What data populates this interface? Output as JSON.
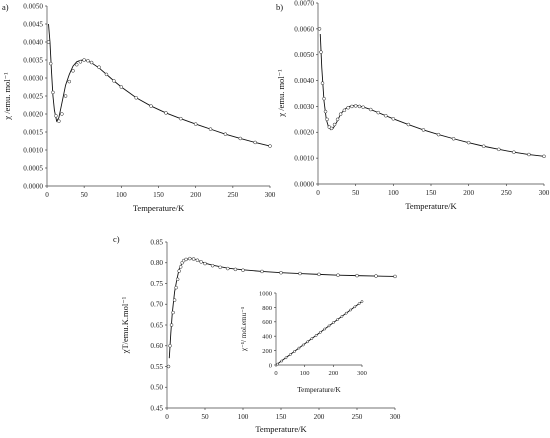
{
  "chart_data": [
    {
      "type": "scatter",
      "panel_label": "a)",
      "xlabel": "Temperature/K",
      "ylabel": "χ /emu. mol⁻¹",
      "xlim": [
        0,
        300
      ],
      "ylim": [
        0,
        0.005
      ],
      "xticks": [
        "0",
        "50",
        "100",
        "150",
        "200",
        "250",
        "300"
      ],
      "yticks": [
        "0.0000",
        "0.0005",
        "0.0010",
        "0.0015",
        "0.0020",
        "0.0025",
        "0.0030",
        "0.0035",
        "0.0040",
        "0.0045",
        "0.0050"
      ],
      "grid": false,
      "legend": false,
      "series": [
        {
          "style": "open-circles",
          "x": [
            2,
            5,
            8,
            12,
            16,
            20,
            25,
            30,
            35,
            40,
            45,
            50,
            55,
            60,
            70,
            80,
            90,
            100,
            120,
            140,
            160,
            180,
            200,
            220,
            240,
            260,
            280,
            300
          ],
          "y": [
            0.004,
            0.0034,
            0.0026,
            0.00195,
            0.0018,
            0.002,
            0.0025,
            0.0029,
            0.0032,
            0.00337,
            0.00345,
            0.0035,
            0.00348,
            0.00343,
            0.0033,
            0.0031,
            0.00292,
            0.00275,
            0.00245,
            0.00222,
            0.00203,
            0.00187,
            0.00172,
            0.00158,
            0.00144,
            0.00132,
            0.00121,
            0.00111
          ]
        },
        {
          "style": "line-fit",
          "x": [
            2,
            4,
            6,
            8,
            10,
            13,
            16,
            20,
            25,
            30,
            35,
            40,
            45,
            50,
            55,
            60,
            70,
            80,
            90,
            100,
            120,
            140,
            160,
            180,
            200,
            220,
            240,
            260,
            280,
            300
          ],
          "y": [
            0.0045,
            0.004,
            0.0032,
            0.0025,
            0.0021,
            0.0018,
            0.0019,
            0.0023,
            0.0028,
            0.0031,
            0.00333,
            0.00345,
            0.00349,
            0.0035,
            0.00347,
            0.00342,
            0.00328,
            0.0031,
            0.00292,
            0.00275,
            0.00245,
            0.00222,
            0.00203,
            0.00187,
            0.00172,
            0.00158,
            0.00144,
            0.00132,
            0.00121,
            0.00111
          ]
        }
      ]
    },
    {
      "type": "scatter",
      "panel_label": "b)",
      "xlabel": "Temperature/K",
      "ylabel": "χ /emu. mol⁻¹",
      "xlim": [
        0,
        300
      ],
      "ylim": [
        0,
        0.007
      ],
      "xticks": [
        "0",
        "50",
        "100",
        "150",
        "200",
        "250",
        "300"
      ],
      "yticks": [
        "0.0000",
        "0.0010",
        "0.0020",
        "0.0030",
        "0.0040",
        "0.0050",
        "0.0060",
        "0.0070"
      ],
      "grid": false,
      "legend": false,
      "series": [
        {
          "style": "open-circles",
          "x": [
            2,
            4,
            6,
            8,
            10,
            12,
            15,
            18,
            22,
            26,
            30,
            35,
            40,
            45,
            50,
            55,
            60,
            70,
            80,
            90,
            100,
            120,
            140,
            160,
            180,
            200,
            220,
            240,
            260,
            280,
            300
          ],
          "y": [
            0.006,
            0.0051,
            0.0039,
            0.0033,
            0.0028,
            0.0025,
            0.0022,
            0.00215,
            0.0023,
            0.0025,
            0.0027,
            0.00285,
            0.00295,
            0.003,
            0.00302,
            0.003,
            0.00297,
            0.00288,
            0.00276,
            0.00264,
            0.00252,
            0.0023,
            0.00209,
            0.00191,
            0.00175,
            0.0016,
            0.00146,
            0.00134,
            0.00123,
            0.00114,
            0.00107
          ]
        },
        {
          "style": "line-fit",
          "x": [
            3,
            5,
            8,
            11,
            14,
            17,
            20,
            25,
            30,
            35,
            40,
            45,
            50,
            55,
            60,
            70,
            80,
            90,
            100,
            120,
            140,
            160,
            180,
            200,
            220,
            240,
            260,
            280,
            300
          ],
          "y": [
            0.0058,
            0.0045,
            0.0032,
            0.0025,
            0.0022,
            0.0021,
            0.00215,
            0.0024,
            0.0027,
            0.00288,
            0.00298,
            0.00303,
            0.00304,
            0.00302,
            0.00298,
            0.00288,
            0.00276,
            0.00264,
            0.00252,
            0.0023,
            0.00209,
            0.00191,
            0.00175,
            0.0016,
            0.00146,
            0.00134,
            0.00123,
            0.00114,
            0.00107
          ]
        }
      ]
    },
    {
      "type": "scatter",
      "panel_label": "c)",
      "xlabel": "Temperature/K",
      "ylabel": "χT/emu.K.mol⁻¹",
      "xlim": [
        0,
        300
      ],
      "ylim": [
        0.45,
        0.85
      ],
      "xticks": [
        "0",
        "50",
        "100",
        "150",
        "200",
        "250",
        "300"
      ],
      "yticks": [
        "0.45",
        "0.50",
        "0.55",
        "0.60",
        "0.65",
        "0.70",
        "0.75",
        "0.80",
        "0.85"
      ],
      "grid": false,
      "legend": false,
      "series": [
        {
          "style": "open-circles",
          "x": [
            2,
            4,
            6,
            8,
            10,
            12,
            14,
            16,
            18,
            20,
            22,
            25,
            30,
            35,
            40,
            45,
            50,
            60,
            70,
            80,
            90,
            100,
            125,
            150,
            175,
            200,
            225,
            250,
            275,
            300
          ],
          "y": [
            0.55,
            0.6,
            0.65,
            0.68,
            0.71,
            0.74,
            0.76,
            0.78,
            0.79,
            0.8,
            0.805,
            0.808,
            0.81,
            0.809,
            0.806,
            0.802,
            0.798,
            0.793,
            0.789,
            0.786,
            0.784,
            0.782,
            0.779,
            0.776,
            0.774,
            0.772,
            0.77,
            0.769,
            0.768,
            0.767
          ]
        },
        {
          "style": "line-fit",
          "x": [
            3,
            5,
            7,
            10,
            13,
            16,
            20,
            25,
            30,
            35,
            40,
            50,
            60,
            80,
            100,
            125,
            150,
            175,
            200,
            225,
            250,
            275,
            300
          ],
          "y": [
            0.57,
            0.63,
            0.68,
            0.73,
            0.76,
            0.785,
            0.8,
            0.808,
            0.81,
            0.809,
            0.806,
            0.799,
            0.794,
            0.787,
            0.783,
            0.779,
            0.776,
            0.774,
            0.772,
            0.77,
            0.769,
            0.768,
            0.767
          ]
        }
      ]
    },
    {
      "type": "scatter",
      "panel_label": "inset",
      "xlabel": "Temperature/K",
      "ylabel": "χ⁻¹/ mol.emu⁻¹",
      "xlim": [
        0,
        300
      ],
      "ylim": [
        0,
        1000
      ],
      "xticks": [
        "0",
        "100",
        "200",
        "300"
      ],
      "yticks": [
        "0",
        "200",
        "400",
        "600",
        "800",
        "1000"
      ],
      "grid": false,
      "legend": false,
      "series": [
        {
          "style": "open-circles",
          "x": [
            5,
            20,
            35,
            50,
            65,
            80,
            95,
            110,
            125,
            140,
            155,
            170,
            185,
            200,
            215,
            230,
            245,
            260,
            275,
            290,
            300
          ],
          "y": [
            12,
            55,
            100,
            145,
            190,
            235,
            278,
            322,
            367,
            410,
            455,
            500,
            543,
            588,
            632,
            676,
            720,
            764,
            808,
            852,
            882
          ]
        },
        {
          "style": "line-fit",
          "x": [
            0,
            300
          ],
          "y": [
            0,
            882
          ]
        }
      ]
    }
  ]
}
